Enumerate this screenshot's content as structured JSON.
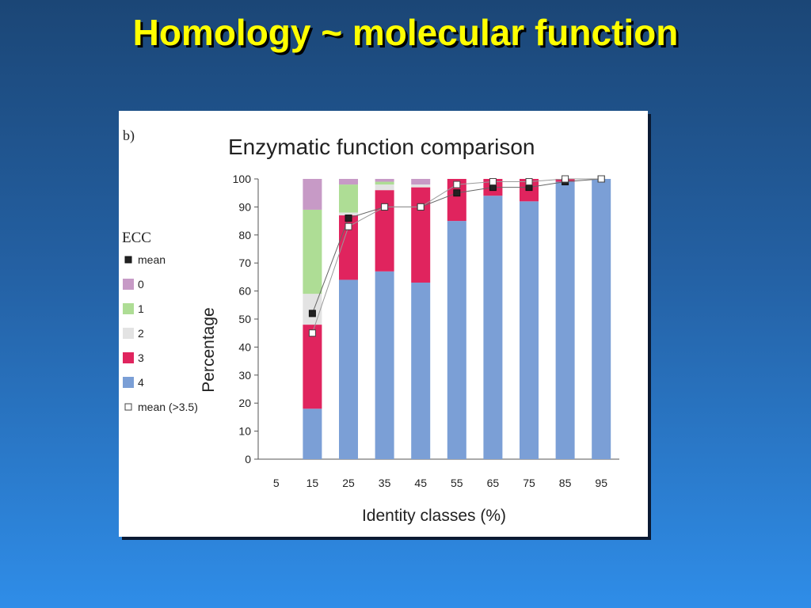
{
  "slide": {
    "title": "Homology ~ molecular function"
  },
  "colors": {
    "class_0": "#c79ac6",
    "class_1": "#aedd95",
    "class_2": "#e3e3e3",
    "class_3": "#e0245e",
    "class_4": "#7b9fd6",
    "mean": "#222222",
    "mean_gt": "#ffffff"
  },
  "chart_data": {
    "type": "bar",
    "panel_label": "b)",
    "title": "Enzymatic function comparison",
    "xlabel": "Identity classes (%)",
    "ylabel": "Percentage",
    "ylim": [
      0,
      100
    ],
    "yticks": [
      0,
      10,
      20,
      30,
      40,
      50,
      60,
      70,
      80,
      90,
      100
    ],
    "categories": [
      "5",
      "15",
      "25",
      "35",
      "45",
      "55",
      "65",
      "75",
      "85",
      "95"
    ],
    "legend_title": "ECC",
    "legend_position": "left",
    "stacked": true,
    "series": [
      {
        "name": "4",
        "color_key": "class_4",
        "values": [
          0,
          18,
          64,
          67,
          63,
          85,
          94,
          92,
          99,
          100
        ]
      },
      {
        "name": "3",
        "color_key": "class_3",
        "values": [
          0,
          30,
          23,
          29,
          34,
          15,
          6,
          8,
          1,
          0
        ]
      },
      {
        "name": "2",
        "color_key": "class_2",
        "values": [
          0,
          11,
          1,
          2,
          1,
          0,
          0,
          0,
          0,
          0
        ]
      },
      {
        "name": "1",
        "color_key": "class_1",
        "values": [
          0,
          30,
          10,
          1,
          0,
          0,
          0,
          0,
          0,
          0
        ]
      },
      {
        "name": "0",
        "color_key": "class_0",
        "values": [
          0,
          11,
          2,
          1,
          2,
          0,
          0,
          0,
          0,
          0
        ]
      }
    ],
    "markers": [
      {
        "name": "mean",
        "color_key": "mean",
        "values": [
          null,
          52,
          86,
          90,
          90,
          95,
          97,
          97,
          99,
          100
        ]
      },
      {
        "name": "mean (>3.5)",
        "color_key": "mean_gt",
        "values": [
          null,
          45,
          83,
          90,
          90,
          98,
          99,
          99,
          100,
          100
        ]
      }
    ],
    "legend_items": [
      {
        "label": "mean",
        "kind": "marker",
        "color_key": "mean"
      },
      {
        "label": "0",
        "kind": "swatch",
        "color_key": "class_0"
      },
      {
        "label": "1",
        "kind": "swatch",
        "color_key": "class_1"
      },
      {
        "label": "2",
        "kind": "swatch",
        "color_key": "class_2"
      },
      {
        "label": "3",
        "kind": "swatch",
        "color_key": "class_3"
      },
      {
        "label": "4",
        "kind": "swatch",
        "color_key": "class_4"
      },
      {
        "label": "mean (>3.5)",
        "kind": "marker-outline",
        "color_key": "mean_gt"
      }
    ]
  }
}
